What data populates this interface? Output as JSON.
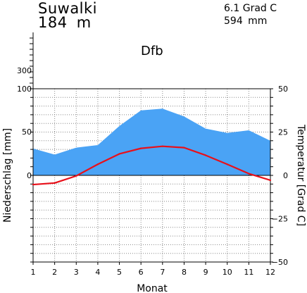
{
  "header": {
    "station": "Suwalki",
    "elevation": "184 m",
    "annual_temp": "6.1 Grad C",
    "annual_precip": "594 mm",
    "climate_class": "Dfb"
  },
  "colors": {
    "precip_fill": "#4aa3f5",
    "temperature_line": "#e8101a",
    "grid": "#888888",
    "axis": "#000000"
  },
  "chart_data": {
    "type": "area",
    "title": "",
    "xlabel": "Monat",
    "ylabel_left": "Niederschlag [mm]",
    "ylabel_right": "Temperatur [Grad C]",
    "categories": [
      "1",
      "2",
      "3",
      "4",
      "5",
      "6",
      "7",
      "8",
      "9",
      "10",
      "11",
      "12"
    ],
    "left_ticks": [
      "300",
      "100",
      "50",
      "0"
    ],
    "right_ticks": [
      "50",
      "25",
      "0",
      "−25",
      "−50"
    ],
    "right_ylim": [
      -50,
      50
    ],
    "series": [
      {
        "kind": "area",
        "unit": "mm",
        "axis": "left",
        "values": [
          31,
          24,
          32,
          35,
          57,
          75,
          77,
          68,
          54,
          49,
          52,
          40
        ]
      },
      {
        "kind": "line",
        "unit": "°C",
        "axis": "right",
        "values": [
          -5.3,
          -4.4,
          -0.3,
          6.4,
          12.4,
          15.6,
          16.8,
          16.0,
          11.6,
          6.4,
          1.0,
          -2.8
        ]
      }
    ],
    "grid": true
  }
}
